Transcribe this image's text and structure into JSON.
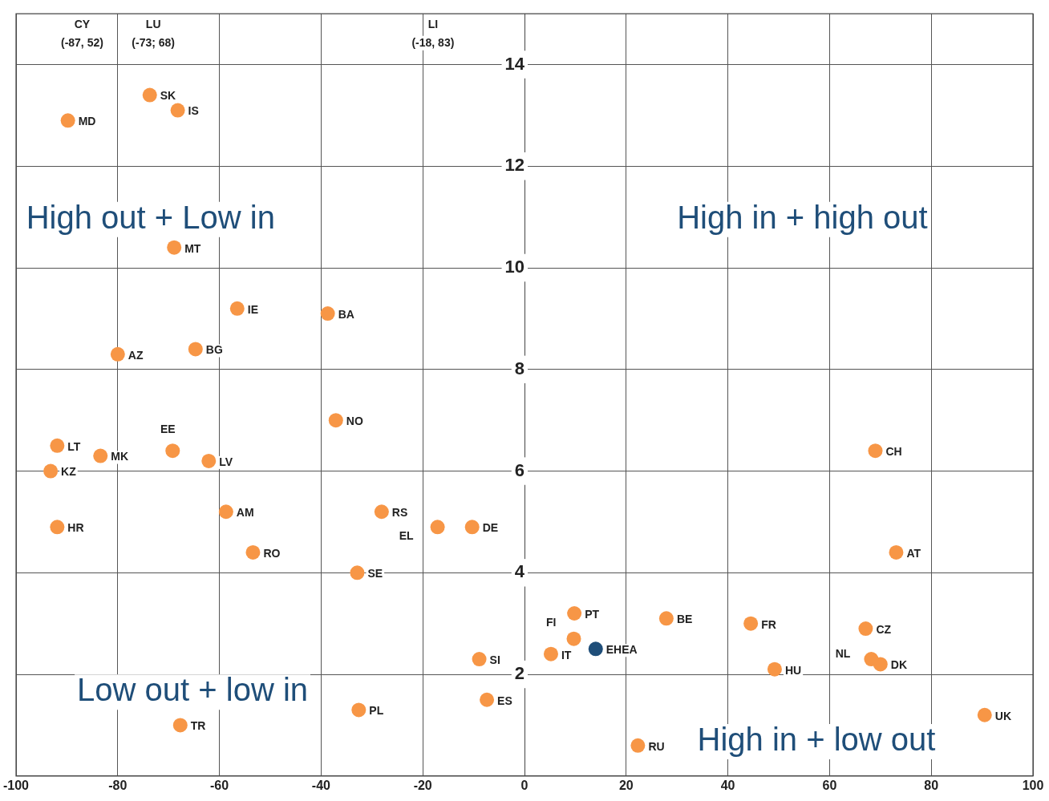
{
  "chart_data": {
    "type": "scatter",
    "xlim": [
      -100,
      100
    ],
    "ylim": [
      0,
      15
    ],
    "xticks": [
      -100,
      -80,
      -60,
      -40,
      -20,
      0,
      20,
      40,
      60,
      80,
      100
    ],
    "yticks": [
      {
        "value": 0,
        "label": null
      },
      2,
      4,
      6,
      8,
      10,
      12,
      14
    ],
    "grid": true,
    "legend": false,
    "marker": "circle",
    "annotations": [
      "High out + Low in",
      "High in + high out",
      "Low out + low in",
      "High in + low out",
      "CY",
      "(-87, 52)",
      "LU",
      "(-73; 68)",
      "LI",
      "(-18, 83)"
    ],
    "series": [
      {
        "name": "SK",
        "color": "#f79646",
        "x": [
          -73.7
        ],
        "values": [
          13.4
        ]
      },
      {
        "name": "IS",
        "color": "#f79646",
        "x": [
          -68.2
        ],
        "values": [
          13.1
        ]
      },
      {
        "name": "MD",
        "color": "#f79646",
        "x": [
          -89.8
        ],
        "values": [
          12.9
        ]
      },
      {
        "name": "MT",
        "color": "#f79646",
        "x": [
          -68.9
        ],
        "values": [
          10.4
        ]
      },
      {
        "name": "IE",
        "color": "#f79646",
        "x": [
          -56.5
        ],
        "values": [
          9.2
        ]
      },
      {
        "name": "BA",
        "color": "#f79646",
        "x": [
          -38.7
        ],
        "values": [
          9.1
        ]
      },
      {
        "name": "AZ",
        "color": "#f79646",
        "x": [
          -80
        ],
        "values": [
          8.3
        ]
      },
      {
        "name": "BG",
        "color": "#f79646",
        "x": [
          -64.7
        ],
        "values": [
          8.4
        ]
      },
      {
        "name": "NO",
        "color": "#f79646",
        "x": [
          -37.1
        ],
        "values": [
          7.0
        ]
      },
      {
        "name": "LT",
        "color": "#f79646",
        "x": [
          -91.9
        ],
        "values": [
          6.5
        ]
      },
      {
        "name": "MK",
        "color": "#f79646",
        "x": [
          -83.4
        ],
        "values": [
          6.3
        ]
      },
      {
        "name": "EE",
        "color": "#f79646",
        "x": [
          -69.2
        ],
        "values": [
          6.4
        ]
      },
      {
        "name": "LV",
        "color": "#f79646",
        "x": [
          -62.1
        ],
        "values": [
          6.2
        ]
      },
      {
        "name": "KZ",
        "color": "#f79646",
        "x": [
          -93.2
        ],
        "values": [
          6.0
        ]
      },
      {
        "name": "CH",
        "color": "#f79646",
        "x": [
          69
        ],
        "values": [
          6.4
        ]
      },
      {
        "name": "AM",
        "color": "#f79646",
        "x": [
          -58.7
        ],
        "values": [
          5.2
        ]
      },
      {
        "name": "RS",
        "color": "#f79646",
        "x": [
          -28.1
        ],
        "values": [
          5.2
        ]
      },
      {
        "name": "EL",
        "color": "#f79646",
        "x": [
          -17.1
        ],
        "values": [
          4.9
        ]
      },
      {
        "name": "DE",
        "color": "#f79646",
        "x": [
          -10.3
        ],
        "values": [
          4.9
        ]
      },
      {
        "name": "HR",
        "color": "#f79646",
        "x": [
          -91.9
        ],
        "values": [
          4.9
        ]
      },
      {
        "name": "RO",
        "color": "#f79646",
        "x": [
          -53.4
        ],
        "values": [
          4.4
        ]
      },
      {
        "name": "AT",
        "color": "#f79646",
        "x": [
          73.1
        ],
        "values": [
          4.4
        ]
      },
      {
        "name": "SE",
        "color": "#f79646",
        "x": [
          -32.9
        ],
        "values": [
          4.0
        ]
      },
      {
        "name": "PT",
        "color": "#f79646",
        "x": [
          9.8
        ],
        "values": [
          3.2
        ]
      },
      {
        "name": "BE",
        "color": "#f79646",
        "x": [
          27.9
        ],
        "values": [
          3.1
        ]
      },
      {
        "name": "FR",
        "color": "#f79646",
        "x": [
          44.5
        ],
        "values": [
          3.0
        ]
      },
      {
        "name": "CZ",
        "color": "#f79646",
        "x": [
          67.1
        ],
        "values": [
          2.9
        ]
      },
      {
        "name": "FI",
        "color": "#f79646",
        "x": [
          9.7
        ],
        "values": [
          2.7
        ]
      },
      {
        "name": "EHEA",
        "color": "#1f4e79",
        "x": [
          14.0
        ],
        "values": [
          2.5
        ]
      },
      {
        "name": "IT",
        "color": "#f79646",
        "x": [
          5.2
        ],
        "values": [
          2.4
        ]
      },
      {
        "name": "SI",
        "color": "#f79646",
        "x": [
          -8.9
        ],
        "values": [
          2.3
        ]
      },
      {
        "name": "NL",
        "color": "#f79646",
        "x": [
          68.2
        ],
        "values": [
          2.3
        ]
      },
      {
        "name": "DK",
        "color": "#f79646",
        "x": [
          70
        ],
        "values": [
          2.2
        ]
      },
      {
        "name": "HU",
        "color": "#f79646",
        "x": [
          49.2
        ],
        "values": [
          2.1
        ]
      },
      {
        "name": "ES",
        "color": "#f79646",
        "x": [
          -7.4
        ],
        "values": [
          1.5
        ]
      },
      {
        "name": "PL",
        "color": "#f79646",
        "x": [
          -32.6
        ],
        "values": [
          1.3
        ]
      },
      {
        "name": "UK",
        "color": "#f79646",
        "x": [
          90.5
        ],
        "values": [
          1.2
        ]
      },
      {
        "name": "TR",
        "color": "#f79646",
        "x": [
          -67.7
        ],
        "values": [
          1.0
        ]
      },
      {
        "name": "RU",
        "color": "#f79646",
        "x": [
          22.3
        ],
        "values": [
          0.6
        ]
      }
    ]
  }
}
